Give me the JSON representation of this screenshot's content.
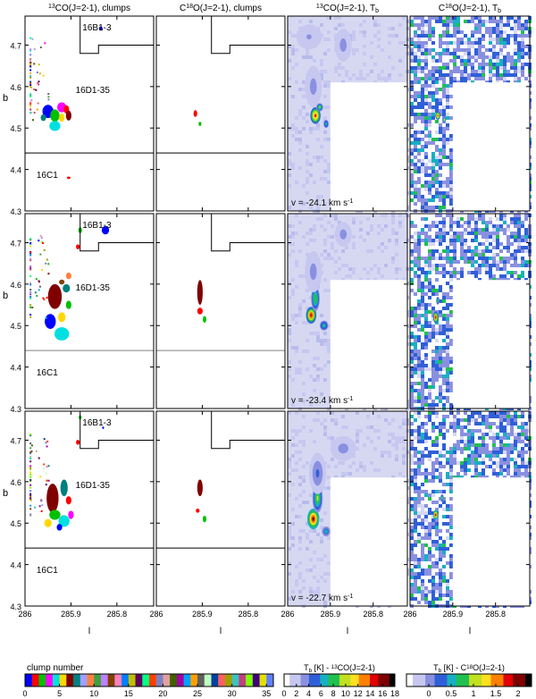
{
  "figure": {
    "column_titles": [
      {
        "sup": "13",
        "main": "CO(J=2-1), clumps"
      },
      {
        "pre": "C",
        "sup": "18",
        "main": "O(J=2-1), clumps"
      },
      {
        "sup": "13",
        "main": "CO(J=2-1), T",
        "sub": "b"
      },
      {
        "pre": "C",
        "sup": "18",
        "main": "O(J=2-1), T",
        "sub": "b"
      }
    ],
    "ylabel": "b",
    "xlabel": "l",
    "xticks": [
      "286",
      "285.9",
      "285.8"
    ],
    "yticks": [
      "4.7",
      "4.6",
      "4.5",
      "4.4",
      "4.3"
    ],
    "rows": [
      {
        "velocity": {
          "pre": "v = -24.1 km s",
          "sup": "-1"
        }
      },
      {
        "velocity": {
          "pre": "v = -23.4 km s",
          "sup": "-1"
        }
      },
      {
        "velocity": {
          "pre": "v = -22.7 km s",
          "sup": "-1"
        }
      }
    ],
    "region_labels": [
      "16B1-3",
      "16D1-35",
      "16C1"
    ],
    "colorbars": [
      {
        "title": "clump number",
        "ticks": [
          "0",
          "5",
          "10",
          "15",
          "20",
          "25",
          "30",
          "35"
        ],
        "range": [
          0,
          36
        ]
      },
      {
        "title": {
          "pre": "T",
          "sub": "b",
          "post": " [K] - ",
          "sup": "13",
          "main": "CO(J=2-1)"
        },
        "ticks": [
          "0",
          "2",
          "4",
          "6",
          "8",
          "10",
          "12",
          "14",
          "16",
          "18"
        ],
        "range": [
          0,
          18
        ]
      },
      {
        "title": {
          "pre": "T",
          "sub": "b",
          "post": " [K] - C",
          "sup": "18",
          "main": "O(J=2-1)"
        },
        "ticks": [
          "0",
          "0.5",
          "1",
          "1.5",
          "2"
        ],
        "range": [
          -0.5,
          2.3
        ]
      }
    ]
  },
  "colors": {
    "map_background": "#d6d8f2",
    "colormap_T": [
      "#ffffff",
      "#c6c8f0",
      "#8a90e0",
      "#2f5fd8",
      "#18b0c0",
      "#20c050",
      "#c0e020",
      "#ffe020",
      "#ff8000",
      "#e00000",
      "#800000",
      "#000000"
    ]
  },
  "chart_data": [
    {
      "type": "heatmap",
      "title": "13CO(J=2-1), clumps",
      "xlabel": "l",
      "ylabel": "b",
      "xlim": [
        286.0,
        285.72
      ],
      "ylim": [
        4.3,
        4.77
      ],
      "description_values": "clump assignment maps for three velocity channels",
      "channels_km_s": [
        -24.1,
        -23.4,
        -22.7
      ],
      "clump_number_range": [
        0,
        36
      ]
    },
    {
      "type": "heatmap",
      "title": "C18O(J=2-1), clumps",
      "xlabel": "l",
      "ylabel": "b",
      "xlim": [
        286.0,
        285.72
      ],
      "ylim": [
        4.3,
        4.77
      ],
      "channels_km_s": [
        -24.1,
        -23.4,
        -22.7
      ],
      "clump_number_range": [
        0,
        36
      ]
    },
    {
      "type": "heatmap",
      "title": "13CO(J=2-1), Tb",
      "xlabel": "l",
      "xlim": [
        286.0,
        285.72
      ],
      "ylim": [
        4.3,
        4.77
      ],
      "channels_km_s": [
        -24.1,
        -23.4,
        -22.7
      ],
      "colorbar_range_K": [
        0,
        18
      ],
      "peak_positions": [
        {
          "channel": -24.1,
          "l": 285.935,
          "b": 4.53
        },
        {
          "channel": -23.4,
          "l": 285.945,
          "b": 4.525
        },
        {
          "channel": -22.7,
          "l": 285.94,
          "b": 4.51
        }
      ]
    },
    {
      "type": "heatmap",
      "title": "C18O(J=2-1), Tb",
      "xlabel": "l",
      "xlim": [
        286.0,
        285.72
      ],
      "ylim": [
        4.3,
        4.77
      ],
      "channels_km_s": [
        -24.1,
        -23.4,
        -22.7
      ],
      "colorbar_range_K": [
        -0.5,
        2.3
      ]
    }
  ]
}
